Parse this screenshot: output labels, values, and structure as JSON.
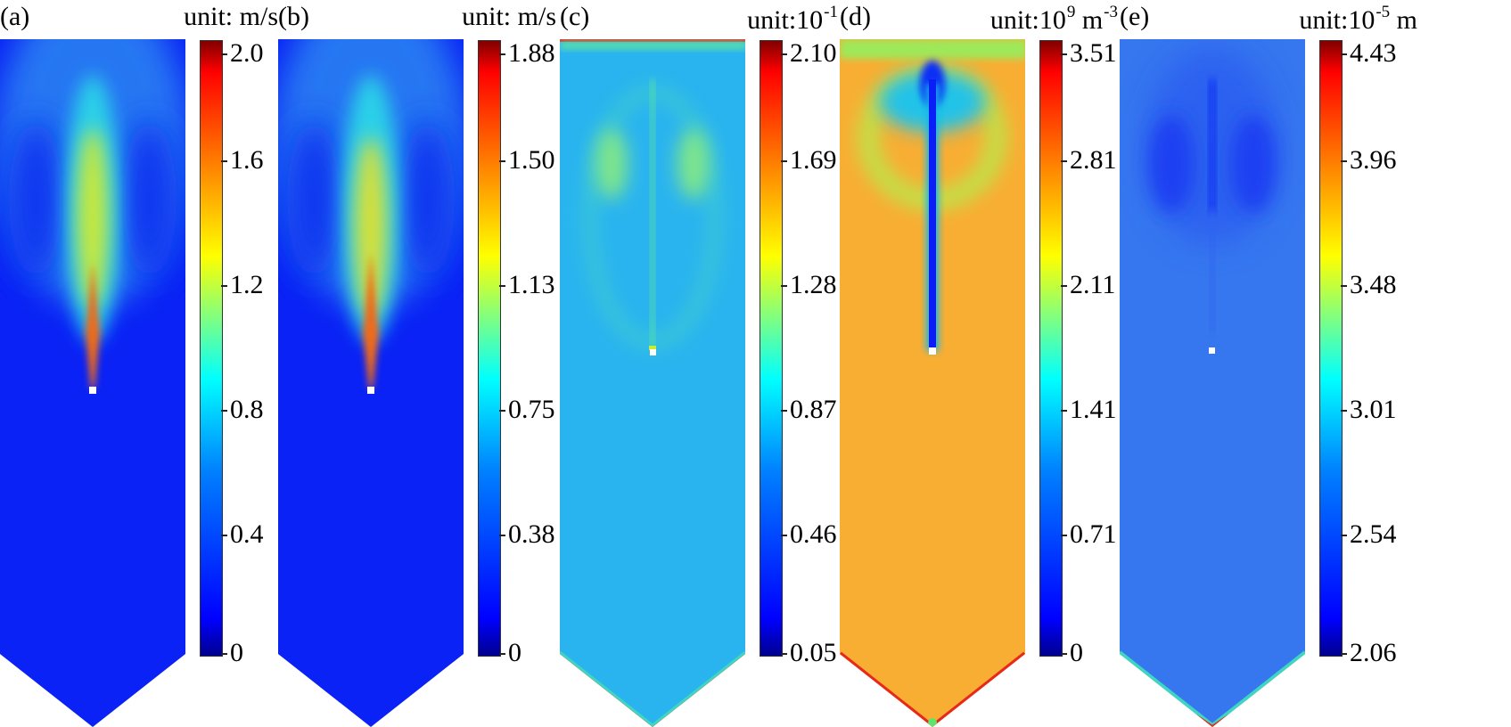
{
  "colormap": [
    "#00008f",
    "#0000ff",
    "#0080ff",
    "#00ffff",
    "#80ff80",
    "#ffff00",
    "#ff8000",
    "#ff0000",
    "#800000"
  ],
  "panels": [
    {
      "label": "(a)",
      "unit": "unit: m/s",
      "ticks": [
        "2.0",
        "1.6",
        "1.2",
        "0.8",
        "0.4",
        "0"
      ]
    },
    {
      "label": "(b)",
      "unit": "unit: m/s",
      "ticks": [
        "1.88",
        "1.50",
        "1.13",
        "0.75",
        "0.38",
        "0"
      ]
    },
    {
      "label": "(c)",
      "unit": "unit:10",
      "unit_exp": "-1",
      "ticks": [
        "2.10",
        "1.69",
        "1.28",
        "0.87",
        "0.46",
        "0.05"
      ]
    },
    {
      "label": "(d)",
      "unit": "unit:10",
      "unit_exp": "9",
      "unit_suffix": " m",
      "unit_suffix_exp": "-3",
      "ticks": [
        "3.51",
        "2.81",
        "2.11",
        "1.41",
        "0.71",
        "0"
      ]
    },
    {
      "label": "(e)",
      "unit": "unit:10",
      "unit_exp": "-5",
      "unit_suffix": " m",
      "ticks": [
        "4.43",
        "3.96",
        "3.48",
        "3.01",
        "2.54",
        "2.06"
      ]
    }
  ]
}
